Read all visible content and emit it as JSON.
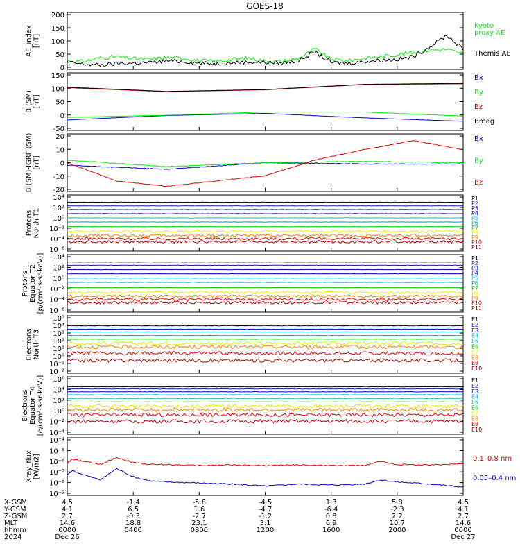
{
  "title": "GOES-18",
  "colors": {
    "black": "#000000",
    "green": "#00ee00",
    "blue": "#0000cc",
    "red": "#dd0000",
    "navy": "#1a1aa0",
    "ch_cyan": "#00c0e0",
    "ch_green": "#00c000",
    "ch_teal": "#00a0a0",
    "ch_yellow": "#e8e800",
    "ch_orange": "#f08000",
    "ch_darkred": "#a00000"
  },
  "chart_data": [
    {
      "type": "line",
      "ylabel": "AE_index\n[nT]",
      "yticks": [
        "200",
        "150",
        "100",
        "50",
        "0"
      ],
      "ylim": [
        0,
        200
      ],
      "series": [
        {
          "name": "Kyoto\nproxy AE",
          "color": "green",
          "x": [
            0,
            1,
            2,
            3,
            4,
            5,
            6,
            7,
            8,
            9,
            10,
            11,
            12,
            13,
            14,
            15,
            16,
            17,
            18,
            19,
            20,
            21,
            22,
            23,
            24
          ],
          "values": [
            30,
            28,
            40,
            45,
            38,
            35,
            42,
            40,
            30,
            28,
            35,
            40,
            30,
            28,
            38,
            72,
            36,
            30,
            40,
            45,
            52,
            60,
            68,
            70,
            55
          ]
        },
        {
          "name": "Themis AE",
          "color": "black",
          "x": [
            0,
            1,
            2,
            3,
            4,
            5,
            6,
            7,
            8,
            9,
            10,
            11,
            12,
            13,
            14,
            15,
            16,
            17,
            18,
            19,
            20,
            21,
            22,
            23,
            24
          ],
          "values": [
            25,
            18,
            15,
            20,
            22,
            24,
            30,
            28,
            22,
            20,
            24,
            26,
            25,
            22,
            30,
            62,
            24,
            22,
            28,
            32,
            35,
            45,
            80,
            120,
            70
          ]
        }
      ]
    },
    {
      "type": "line",
      "ylabel": "B (SM)\n[nT]",
      "yticks": [
        "150",
        "100",
        "50",
        "0",
        "-50"
      ],
      "ylim": [
        -60,
        160
      ],
      "series": [
        {
          "name": "Bx",
          "color": "blue",
          "x": [
            0,
            6,
            12,
            18,
            24
          ],
          "values": [
            -20,
            -3,
            5,
            -12,
            -25
          ]
        },
        {
          "name": "By",
          "color": "green",
          "x": [
            0,
            6,
            12,
            18,
            24
          ],
          "values": [
            -10,
            -2,
            10,
            10,
            -5
          ]
        },
        {
          "name": "Bz",
          "color": "red",
          "x": [
            0,
            6,
            12,
            18,
            24
          ],
          "values": [
            103,
            88,
            95,
            115,
            118
          ]
        },
        {
          "name": "Bmag",
          "color": "black",
          "x": [
            0,
            6,
            12,
            18,
            24
          ],
          "values": [
            105,
            89,
            96,
            116,
            120
          ]
        }
      ]
    },
    {
      "type": "line",
      "ylabel": "B (SM)-IGRF (SM)\n[nT]",
      "yticks": [
        "20",
        "10",
        "0",
        "-10",
        "-20"
      ],
      "ylim": [
        -22,
        22
      ],
      "series": [
        {
          "name": "Bx",
          "color": "blue",
          "x": [
            0,
            6,
            12,
            18,
            24
          ],
          "values": [
            -2,
            -5,
            0,
            -1,
            -1
          ]
        },
        {
          "name": "By",
          "color": "green",
          "x": [
            0,
            6,
            12,
            18,
            24
          ],
          "values": [
            2,
            -3,
            0,
            1,
            0
          ]
        },
        {
          "name": "Bz",
          "color": "red",
          "x": [
            0,
            3,
            6,
            9,
            12,
            15,
            18,
            21,
            24
          ],
          "values": [
            0,
            -14,
            -18,
            -14,
            -10,
            2,
            10,
            17,
            10
          ]
        }
      ]
    },
    {
      "type": "line",
      "ylabel": "Protons\nNorth T1",
      "yticks": [
        "10⁴",
        "10²",
        "10⁰",
        "10⁻²",
        "10⁻⁴",
        "10⁻⁶"
      ],
      "channels": [
        "P1",
        "P2",
        "P3",
        "P4",
        "P5",
        "P6",
        "P7",
        "P8",
        "P9",
        "P10",
        "P11"
      ],
      "channel_colors": [
        "black",
        "navy",
        "blue",
        "blue",
        "ch_cyan",
        "ch_teal",
        "ch_green",
        "ch_yellow",
        "ch_orange",
        "red",
        "ch_darkred"
      ],
      "levels_log10": [
        3.2,
        2.5,
        1.8,
        1.0,
        0.2,
        -0.6,
        -1.5,
        -2.4,
        -3.2,
        -3.8,
        -4.4
      ]
    },
    {
      "type": "line",
      "ylabel": "Protons\nEquator T2\n[p/(cm²-s-sr-keV)]",
      "yticks": [
        "10⁴",
        "10²",
        "10⁰",
        "10⁻²",
        "10⁻⁴",
        "10⁻⁶"
      ],
      "channels": [
        "P1",
        "P2",
        "P3",
        "P4",
        "P5",
        "P6",
        "P7",
        "P8",
        "P9",
        "P10",
        "P11"
      ],
      "channel_colors": [
        "black",
        "navy",
        "blue",
        "blue",
        "ch_cyan",
        "ch_teal",
        "ch_green",
        "ch_yellow",
        "ch_orange",
        "red",
        "ch_darkred"
      ],
      "levels_log10": [
        3.2,
        2.6,
        1.8,
        1.0,
        0.2,
        -0.6,
        -1.6,
        -2.5,
        -3.2,
        -3.8,
        -4.4
      ]
    },
    {
      "type": "line",
      "ylabel": "Electrons\nNorth T3",
      "yticks": [
        "10⁵",
        "10⁴",
        "10³",
        "10²",
        "10¹",
        "10⁰",
        "10⁻¹",
        "10⁻²"
      ],
      "channels": [
        "E1",
        "E2",
        "E3",
        "E4",
        "E5",
        "E6",
        "E7",
        "E8",
        "E9",
        "E10"
      ],
      "channel_colors": [
        "black",
        "navy",
        "blue",
        "ch_cyan",
        "ch_teal",
        "ch_green",
        "ch_yellow",
        "ch_orange",
        "red",
        "ch_darkred"
      ],
      "levels_log10": [
        4.0,
        3.8,
        3.5,
        3.1,
        2.6,
        2.1,
        1.5,
        1.0,
        0.1,
        -0.9
      ]
    },
    {
      "type": "line",
      "ylabel": "Electrons\nEquator T4\n[e/(cm²-s-sr-keV)]",
      "yticks": [
        "10⁶",
        "10⁴",
        "10²",
        "10⁰",
        "10⁻²",
        "10⁻⁴"
      ],
      "channels": [
        "E1",
        "E2",
        "E3",
        "E4",
        "E5",
        "E6",
        "E7",
        "E8",
        "E9",
        "E10"
      ],
      "channel_colors": [
        "black",
        "navy",
        "blue",
        "ch_cyan",
        "ch_teal",
        "ch_green",
        "ch_yellow",
        "ch_orange",
        "red",
        "ch_darkred"
      ],
      "levels_log10": [
        4.0,
        3.7,
        3.3,
        2.9,
        2.4,
        1.9,
        1.3,
        0.8,
        0.1,
        -0.8
      ]
    },
    {
      "type": "line",
      "ylabel": "Xray_flux\n[W/m2]",
      "yticks": [
        "10⁻⁴",
        "10⁻⁵",
        "10⁻⁶",
        "10⁻⁷",
        "10⁻⁸",
        "10⁻⁹"
      ],
      "series": [
        {
          "name": "0.1–0.8 nm",
          "color": "red",
          "x": [
            0,
            0.3,
            1,
            2,
            3,
            4,
            5,
            6,
            8,
            10,
            12,
            14,
            16,
            18,
            19,
            20,
            22,
            24
          ],
          "values_log10": [
            -6.2,
            -5.8,
            -6.0,
            -6.3,
            -5.6,
            -6.1,
            -6.3,
            -6.3,
            -6.4,
            -6.35,
            -6.4,
            -6.35,
            -6.4,
            -6.4,
            -6.0,
            -6.3,
            -6.35,
            -6.2
          ]
        },
        {
          "name": "0.05–0.4 nm",
          "color": "blue",
          "x": [
            0,
            0.3,
            1,
            2,
            3,
            4,
            5,
            6,
            8,
            10,
            12,
            14,
            16,
            18,
            19,
            20,
            22,
            24
          ],
          "values_log10": [
            -7.3,
            -6.9,
            -7.3,
            -7.8,
            -6.7,
            -7.5,
            -7.9,
            -8.0,
            -8.1,
            -8.2,
            -8.4,
            -8.2,
            -8.3,
            -8.2,
            -7.8,
            -8.0,
            -8.2,
            -8.5
          ]
        }
      ]
    }
  ],
  "xaxis": {
    "row_labels": [
      "X-GSM",
      "Y-GSM",
      "Z-GSM",
      "MLT",
      "hhmm",
      "2024"
    ],
    "columns": [
      [
        "4.5",
        "4.1",
        "2.7",
        "14.6",
        "0000",
        "Dec 26"
      ],
      [
        "-1.4",
        "6.5",
        "-0.3",
        "18.8",
        "0400",
        ""
      ],
      [
        "-5.8",
        "1.6",
        "-2.7",
        "23.1",
        "0800",
        ""
      ],
      [
        "-4.5",
        "-4.7",
        "-1.2",
        "3.1",
        "1200",
        ""
      ],
      [
        "1.3",
        "-6.4",
        "0.8",
        "6.9",
        "1600",
        ""
      ],
      [
        "5.8",
        "-2.3",
        "2.2",
        "10.7",
        "2000",
        ""
      ],
      [
        "4.5",
        "4.1",
        "2.7",
        "14.6",
        "0000",
        "Dec 27"
      ]
    ]
  }
}
